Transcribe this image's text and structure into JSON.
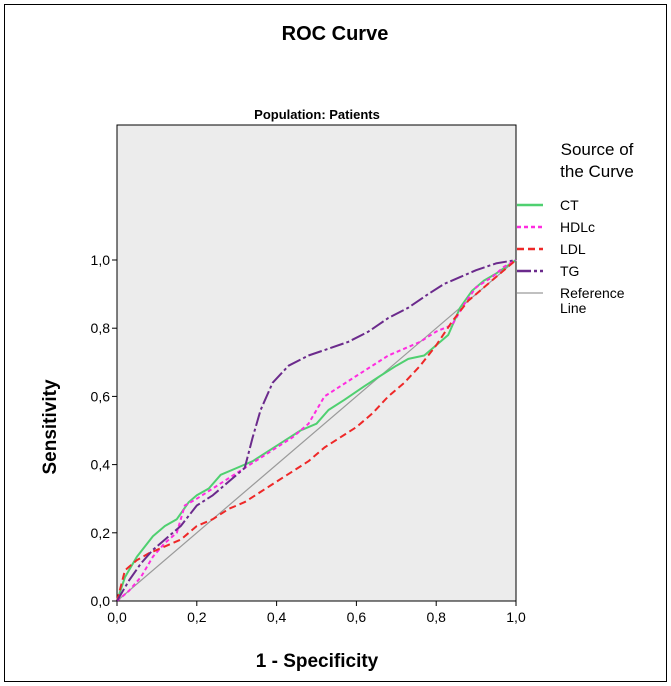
{
  "chart_data": {
    "type": "line",
    "title": "ROC Curve",
    "subtitle": "Population: Patients",
    "xlabel": "1 - Specificity",
    "ylabel": "Sensitivity",
    "xlim": [
      0,
      1
    ],
    "ylim": [
      0,
      1
    ],
    "x_ticks": [
      "0,0",
      "0,2",
      "0,4",
      "0,6",
      "0,8",
      "1,0"
    ],
    "y_ticks": [
      "0,0",
      "0,2",
      "0,4",
      "0,6",
      "0,8",
      "1,0"
    ],
    "grid": false,
    "plot_background": "#ececec",
    "legend": {
      "title_lines": [
        "Source of",
        "the Curve"
      ],
      "placement": "right"
    },
    "series": [
      {
        "name": "CT",
        "color": "#4fd070",
        "dash": "solid",
        "points": [
          [
            0,
            0
          ],
          [
            0.02,
            0.07
          ],
          [
            0.05,
            0.13
          ],
          [
            0.09,
            0.19
          ],
          [
            0.12,
            0.22
          ],
          [
            0.15,
            0.24
          ],
          [
            0.18,
            0.29
          ],
          [
            0.2,
            0.31
          ],
          [
            0.23,
            0.33
          ],
          [
            0.26,
            0.37
          ],
          [
            0.3,
            0.39
          ],
          [
            0.34,
            0.41
          ],
          [
            0.38,
            0.44
          ],
          [
            0.42,
            0.47
          ],
          [
            0.46,
            0.5
          ],
          [
            0.5,
            0.52
          ],
          [
            0.53,
            0.56
          ],
          [
            0.57,
            0.59
          ],
          [
            0.62,
            0.63
          ],
          [
            0.66,
            0.66
          ],
          [
            0.7,
            0.69
          ],
          [
            0.73,
            0.71
          ],
          [
            0.77,
            0.72
          ],
          [
            0.8,
            0.75
          ],
          [
            0.83,
            0.78
          ],
          [
            0.86,
            0.86
          ],
          [
            0.89,
            0.91
          ],
          [
            0.92,
            0.94
          ],
          [
            0.95,
            0.96
          ],
          [
            1,
            1
          ]
        ]
      },
      {
        "name": "HDLc",
        "color": "#ff2ce0",
        "dash": "4,3",
        "points": [
          [
            0,
            0
          ],
          [
            0.03,
            0.03
          ],
          [
            0.06,
            0.07
          ],
          [
            0.09,
            0.13
          ],
          [
            0.12,
            0.17
          ],
          [
            0.15,
            0.2
          ],
          [
            0.17,
            0.28
          ],
          [
            0.2,
            0.3
          ],
          [
            0.24,
            0.33
          ],
          [
            0.28,
            0.36
          ],
          [
            0.32,
            0.39
          ],
          [
            0.36,
            0.42
          ],
          [
            0.4,
            0.45
          ],
          [
            0.44,
            0.48
          ],
          [
            0.48,
            0.52
          ],
          [
            0.52,
            0.6
          ],
          [
            0.56,
            0.63
          ],
          [
            0.6,
            0.66
          ],
          [
            0.64,
            0.69
          ],
          [
            0.68,
            0.72
          ],
          [
            0.72,
            0.74
          ],
          [
            0.76,
            0.76
          ],
          [
            0.8,
            0.79
          ],
          [
            0.84,
            0.81
          ],
          [
            0.87,
            0.87
          ],
          [
            0.9,
            0.92
          ],
          [
            0.94,
            0.95
          ],
          [
            0.97,
            0.98
          ],
          [
            1,
            1
          ]
        ]
      },
      {
        "name": "LDL",
        "color": "#ee2828",
        "dash": "7,4",
        "points": [
          [
            0,
            0
          ],
          [
            0.02,
            0.09
          ],
          [
            0.05,
            0.12
          ],
          [
            0.08,
            0.14
          ],
          [
            0.12,
            0.16
          ],
          [
            0.16,
            0.18
          ],
          [
            0.2,
            0.22
          ],
          [
            0.24,
            0.24
          ],
          [
            0.28,
            0.27
          ],
          [
            0.32,
            0.29
          ],
          [
            0.36,
            0.32
          ],
          [
            0.4,
            0.35
          ],
          [
            0.44,
            0.38
          ],
          [
            0.48,
            0.41
          ],
          [
            0.52,
            0.45
          ],
          [
            0.56,
            0.48
          ],
          [
            0.6,
            0.51
          ],
          [
            0.64,
            0.55
          ],
          [
            0.68,
            0.6
          ],
          [
            0.72,
            0.64
          ],
          [
            0.76,
            0.69
          ],
          [
            0.8,
            0.75
          ],
          [
            0.84,
            0.82
          ],
          [
            0.88,
            0.88
          ],
          [
            0.92,
            0.92
          ],
          [
            0.96,
            0.96
          ],
          [
            1,
            1
          ]
        ]
      },
      {
        "name": "TG",
        "color": "#6b2a8c",
        "dash": "14,3,3,3",
        "points": [
          [
            0,
            0
          ],
          [
            0.03,
            0.06
          ],
          [
            0.06,
            0.11
          ],
          [
            0.09,
            0.15
          ],
          [
            0.12,
            0.18
          ],
          [
            0.16,
            0.22
          ],
          [
            0.2,
            0.28
          ],
          [
            0.24,
            0.31
          ],
          [
            0.28,
            0.35
          ],
          [
            0.32,
            0.39
          ],
          [
            0.34,
            0.48
          ],
          [
            0.36,
            0.56
          ],
          [
            0.39,
            0.64
          ],
          [
            0.43,
            0.69
          ],
          [
            0.48,
            0.72
          ],
          [
            0.53,
            0.74
          ],
          [
            0.58,
            0.76
          ],
          [
            0.63,
            0.79
          ],
          [
            0.68,
            0.83
          ],
          [
            0.73,
            0.86
          ],
          [
            0.78,
            0.9
          ],
          [
            0.82,
            0.93
          ],
          [
            0.86,
            0.95
          ],
          [
            0.9,
            0.97
          ],
          [
            0.95,
            0.99
          ],
          [
            1,
            1
          ]
        ]
      },
      {
        "name": "Reference Line",
        "color": "#9a9a9a",
        "dash": "solid",
        "points": [
          [
            0,
            0
          ],
          [
            1,
            1
          ]
        ]
      }
    ]
  }
}
